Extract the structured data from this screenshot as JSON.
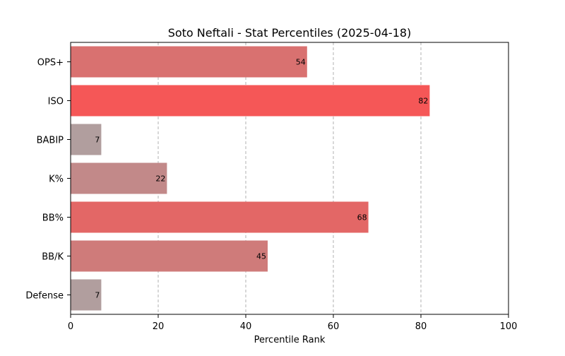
{
  "chart_data": {
    "type": "bar",
    "orientation": "horizontal",
    "title": "Soto Neftali - Stat Percentiles (2025-04-18)",
    "xlabel": "Percentile Rank",
    "ylabel": "",
    "xlim": [
      0,
      100
    ],
    "xticks": [
      0,
      20,
      40,
      60,
      80,
      100
    ],
    "grid": "x-dashed",
    "categories": [
      "OPS+",
      "ISO",
      "BABIP",
      "K%",
      "BB%",
      "BB/K",
      "Defense"
    ],
    "values": [
      54,
      82,
      7,
      22,
      68,
      45,
      7
    ],
    "bar_colors": [
      "#d97170",
      "#f55757",
      "#b19e9e",
      "#c28989",
      "#e36766",
      "#cf7b7a",
      "#b19e9e"
    ]
  }
}
